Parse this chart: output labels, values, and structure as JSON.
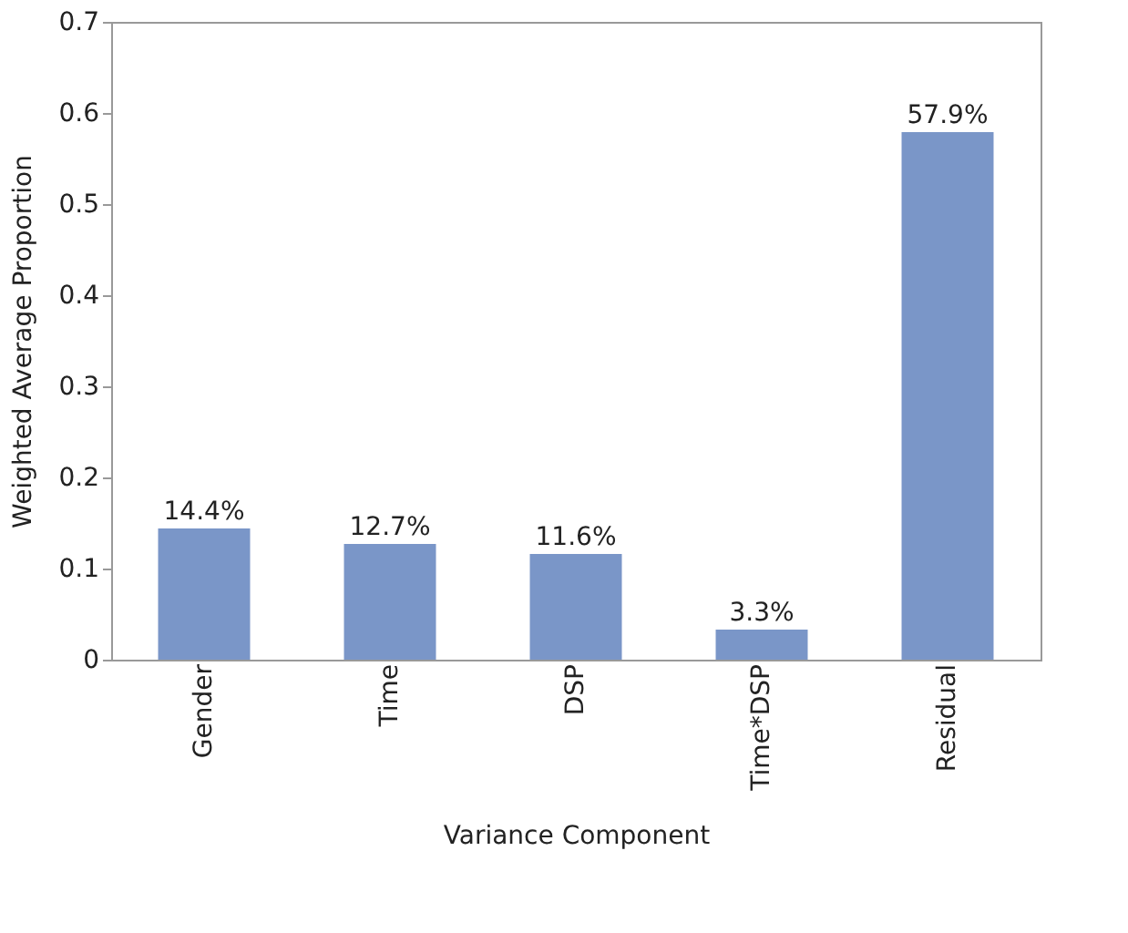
{
  "chart_data": {
    "type": "bar",
    "xlabel": "Variance Component",
    "ylabel": "Weighted Average Proportion",
    "categories": [
      "Gender",
      "Time",
      "DSP",
      "Time*DSP",
      "Residual"
    ],
    "values": [
      0.144,
      0.127,
      0.116,
      0.033,
      0.579
    ],
    "value_labels": [
      "14.4%",
      "12.7%",
      "11.6%",
      "3.3%",
      "57.9%"
    ],
    "color": "#7a96c8",
    "ylim": [
      0,
      0.7
    ],
    "yticks": [
      0,
      0.1,
      0.2,
      0.3,
      0.4,
      0.5,
      0.6,
      0.7
    ],
    "grid": false
  }
}
